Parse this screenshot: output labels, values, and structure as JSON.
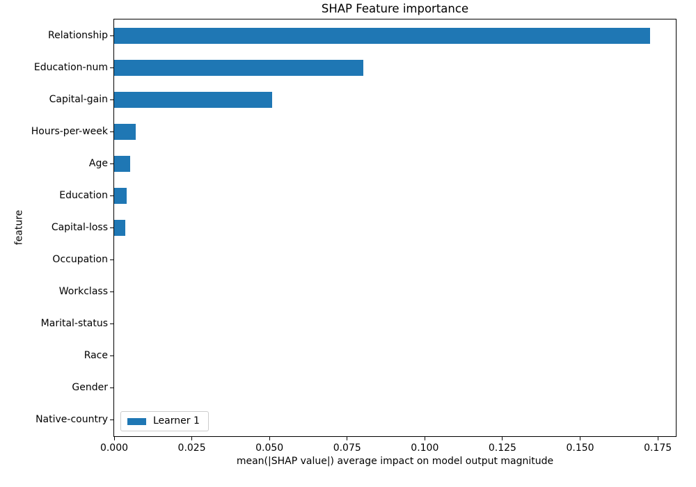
{
  "figure": {
    "background": "#ffffff",
    "text_color": "#000000"
  },
  "chart_data": {
    "type": "bar",
    "orientation": "horizontal",
    "title": "SHAP Feature importance",
    "xlabel": "mean(|SHAP value|) average impact on model output magnitude",
    "ylabel": "feature",
    "categories": [
      "Relationship",
      "Education-num",
      "Capital-gain",
      "Hours-per-week",
      "Age",
      "Education",
      "Capital-loss",
      "Occupation",
      "Workclass",
      "Marital-status",
      "Race",
      "Gender",
      "Native-country"
    ],
    "series": [
      {
        "name": "Learner 1",
        "color": "#1f77b4",
        "values": [
          0.1726,
          0.0803,
          0.0509,
          0.0069,
          0.0051,
          0.004,
          0.0036,
          0,
          0,
          0,
          0,
          0,
          0
        ]
      }
    ],
    "xlim": [
      0,
      0.1808
    ],
    "xticks": [
      0,
      0.025,
      0.05,
      0.075,
      0.1,
      0.125,
      0.15,
      0.175
    ],
    "xtick_labels": [
      "0.000",
      "0.025",
      "0.050",
      "0.075",
      "0.100",
      "0.125",
      "0.150",
      "0.175"
    ],
    "grid": false,
    "legend": {
      "position": "lower left",
      "entries": [
        {
          "label": "Learner 1",
          "color": "#1f77b4"
        }
      ]
    }
  }
}
